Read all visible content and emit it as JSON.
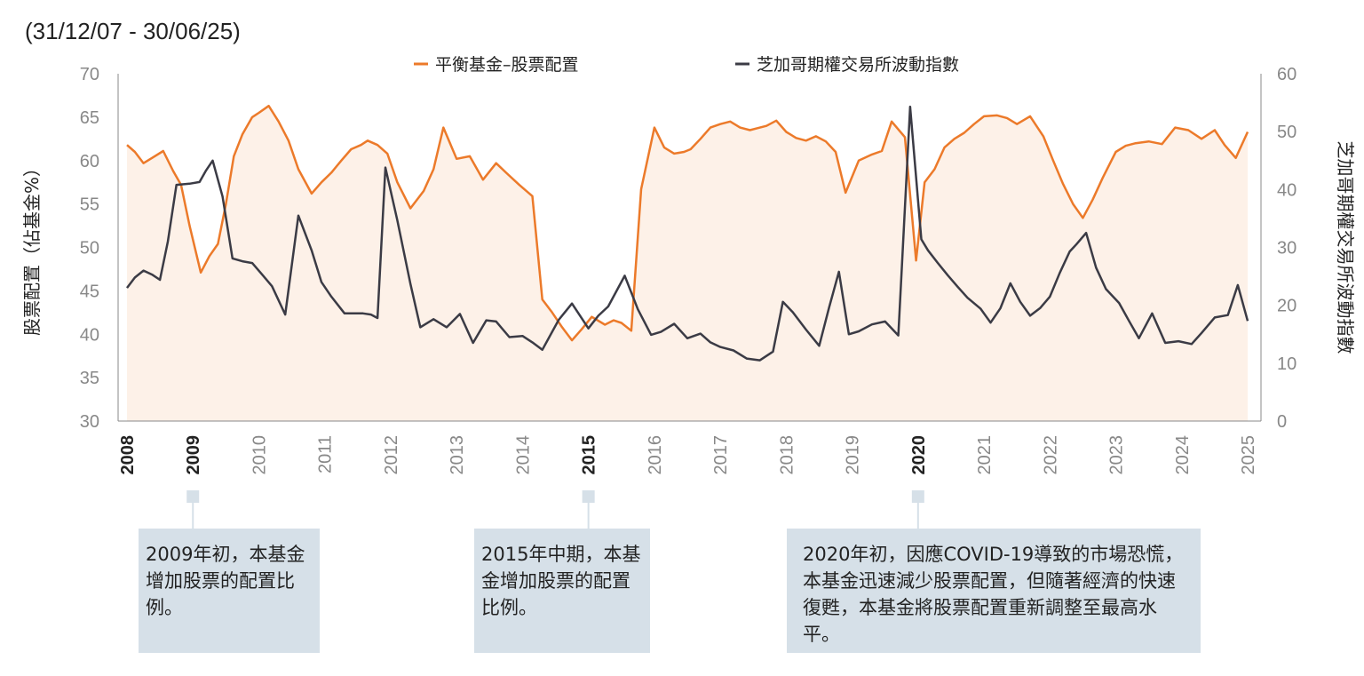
{
  "date_range": "(31/12/07 - 30/06/25)",
  "colors": {
    "equity_line": "#ec7a2a",
    "equity_fill": "#fdf1e8",
    "vix_line": "#3b3b45",
    "axis": "#888888",
    "tick_text": "#888888",
    "note_bg": "#d6e0e8",
    "connector": "#d6e0e8"
  },
  "chart_data": {
    "type": "line",
    "title": "",
    "legend": [
      "平衡基金–股票配置",
      "芝加哥期權交易所波動指數"
    ],
    "ylabel_left": "股票配置（佔基金%）",
    "ylabel_right": "芝加哥期權交易所波動指數",
    "ylim_left": [
      30,
      70
    ],
    "ylim_right": [
      0,
      60
    ],
    "yticks_left": [
      "70",
      "65",
      "60",
      "55",
      "50",
      "45",
      "40",
      "35",
      "30"
    ],
    "yticks_right": [
      "60",
      "50",
      "40",
      "30",
      "20",
      "10",
      "0"
    ],
    "xlim": [
      2008,
      2025
    ],
    "xticks": [
      {
        "label": "2008",
        "bold": true
      },
      {
        "label": "2009",
        "bold": true
      },
      {
        "label": "2010",
        "bold": false
      },
      {
        "label": "2011",
        "bold": false
      },
      {
        "label": "2012",
        "bold": false
      },
      {
        "label": "2013",
        "bold": false
      },
      {
        "label": "2014",
        "bold": false
      },
      {
        "label": "2015",
        "bold": true
      },
      {
        "label": "2016",
        "bold": false
      },
      {
        "label": "2017",
        "bold": false
      },
      {
        "label": "2018",
        "bold": false
      },
      {
        "label": "2019",
        "bold": false
      },
      {
        "label": "2020",
        "bold": true
      },
      {
        "label": "2021",
        "bold": false
      },
      {
        "label": "2022",
        "bold": false
      },
      {
        "label": "2023",
        "bold": false
      },
      {
        "label": "2024",
        "bold": false
      },
      {
        "label": "2025",
        "bold": false
      }
    ],
    "series": [
      {
        "name": "平衡基金–股票配置",
        "axis": "left",
        "x": [
          2008,
          2008.12,
          2008.25,
          2008.38,
          2008.55,
          2008.7,
          2008.82,
          2008.95,
          2009.12,
          2009.25,
          2009.38,
          2009.5,
          2009.62,
          2009.75,
          2009.9,
          2010.0,
          2010.15,
          2010.3,
          2010.45,
          2010.6,
          2010.8,
          2010.95,
          2011.1,
          2011.25,
          2011.4,
          2011.55,
          2011.65,
          2011.8,
          2011.95,
          2012.1,
          2012.3,
          2012.5,
          2012.65,
          2012.8,
          2013.0,
          2013.2,
          2013.4,
          2013.6,
          2013.75,
          2013.95,
          2014.15,
          2014.3,
          2014.45,
          2014.6,
          2014.75,
          2014.9,
          2015.05,
          2015.25,
          2015.38,
          2015.5,
          2015.65,
          2015.8,
          2016.0,
          2016.15,
          2016.3,
          2016.45,
          2016.55,
          2016.7,
          2016.85,
          2017.0,
          2017.15,
          2017.3,
          2017.45,
          2017.55,
          2017.7,
          2017.85,
          2018.0,
          2018.15,
          2018.3,
          2018.45,
          2018.6,
          2018.75,
          2018.9,
          2019.1,
          2019.3,
          2019.45,
          2019.6,
          2019.8,
          2019.97,
          2020.1,
          2020.25,
          2020.4,
          2020.55,
          2020.7,
          2020.85,
          2021.0,
          2021.2,
          2021.35,
          2021.5,
          2021.7,
          2021.9,
          2022.05,
          2022.2,
          2022.35,
          2022.5,
          2022.65,
          2022.8,
          2023.0,
          2023.15,
          2023.3,
          2023.5,
          2023.7,
          2023.9,
          2024.1,
          2024.3,
          2024.5,
          2024.65,
          2024.82,
          2025.0
        ],
        "values": [
          61.8,
          61,
          59.7,
          60.3,
          61.1,
          58.8,
          57.2,
          52.5,
          47.1,
          49,
          50.4,
          55,
          60.5,
          63,
          65,
          65.5,
          66.3,
          64.5,
          62.3,
          59,
          56.2,
          57.5,
          58.6,
          60,
          61.3,
          61.8,
          62.3,
          61.8,
          60.8,
          57.5,
          54.5,
          56.5,
          59,
          63.8,
          60.2,
          60.5,
          57.8,
          59.7,
          58.6,
          57.2,
          55.9,
          44,
          42.5,
          40.8,
          39.3,
          40.6,
          42,
          41.1,
          41.6,
          41.3,
          40.4,
          56.7,
          63.8,
          61.5,
          60.8,
          61,
          61.3,
          62.5,
          63.8,
          64.2,
          64.5,
          63.8,
          63.5,
          63.7,
          64,
          64.6,
          63.3,
          62.6,
          62.3,
          62.8,
          62.2,
          61,
          56.3,
          60,
          60.7,
          61.1,
          64.5,
          62.7,
          48.5,
          57.5,
          59,
          61.5,
          62.5,
          63.2,
          64.2,
          65.1,
          65.2,
          64.9,
          64.2,
          65.1,
          62.8,
          60,
          57.3,
          55,
          53.4,
          55.5,
          58,
          61,
          61.7,
          62,
          62.2,
          61.9,
          63.8,
          63.5,
          62.5,
          63.5,
          61.8,
          60.3,
          63.3
        ]
      },
      {
        "name": "芝加哥期權交易所波動指數",
        "axis": "right",
        "x": [
          2008,
          2008.12,
          2008.25,
          2008.38,
          2008.5,
          2008.62,
          2008.75,
          2008.95,
          2009.1,
          2009.2,
          2009.3,
          2009.45,
          2009.6,
          2009.75,
          2009.9,
          2010.05,
          2010.2,
          2010.4,
          2010.6,
          2010.8,
          2010.95,
          2011.1,
          2011.3,
          2011.45,
          2011.58,
          2011.7,
          2011.8,
          2011.92,
          2012.1,
          2012.3,
          2012.45,
          2012.65,
          2012.85,
          2013.05,
          2013.25,
          2013.45,
          2013.6,
          2013.8,
          2014.0,
          2014.15,
          2014.3,
          2014.55,
          2014.75,
          2015.0,
          2015.15,
          2015.3,
          2015.55,
          2015.75,
          2015.95,
          2016.1,
          2016.3,
          2016.5,
          2016.7,
          2016.85,
          2017.0,
          2017.2,
          2017.4,
          2017.6,
          2017.8,
          2017.95,
          2018.1,
          2018.3,
          2018.5,
          2018.65,
          2018.8,
          2018.95,
          2019.1,
          2019.3,
          2019.5,
          2019.7,
          2019.88,
          2020.05,
          2020.15,
          2020.3,
          2020.45,
          2020.6,
          2020.75,
          2020.95,
          2021.1,
          2021.25,
          2021.4,
          2021.55,
          2021.7,
          2021.85,
          2022.0,
          2022.15,
          2022.3,
          2022.4,
          2022.55,
          2022.7,
          2022.85,
          2023.05,
          2023.2,
          2023.35,
          2023.55,
          2023.75,
          2023.95,
          2024.15,
          2024.3,
          2024.5,
          2024.7,
          2024.85,
          2025.0
        ],
        "values": [
          23,
          24.8,
          26,
          25.3,
          24.4,
          31,
          40.8,
          41,
          41.3,
          43.3,
          45,
          38.8,
          28.1,
          27.6,
          27.3,
          25.3,
          23.3,
          18.4,
          35.5,
          29.5,
          24,
          21.5,
          18.6,
          18.6,
          18.6,
          18.4,
          17.8,
          43.8,
          34.7,
          23.7,
          16.2,
          17.6,
          16.2,
          18.5,
          13.5,
          17.4,
          17.2,
          14.5,
          14.7,
          13.6,
          12.3,
          17.5,
          20.3,
          16,
          18.2,
          19.8,
          25.1,
          19.3,
          14.9,
          15.4,
          16.8,
          14.3,
          15.1,
          13.6,
          12.8,
          12.2,
          10.8,
          10.5,
          12,
          20.6,
          18.8,
          15.8,
          13,
          19.6,
          25.8,
          15,
          15.5,
          16.7,
          17.2,
          14.8,
          54.3,
          31.4,
          29.5,
          27.3,
          25.2,
          23.2,
          21.3,
          19.4,
          17,
          19.5,
          23.8,
          20.6,
          18.2,
          19.5,
          21.5,
          25.6,
          29.3,
          30.5,
          32.5,
          26.5,
          22.8,
          20.4,
          17.3,
          14.3,
          18.6,
          13.5,
          13.8,
          13.3,
          15.2,
          17.9,
          18.3,
          23.5,
          17.3
        ]
      }
    ]
  },
  "notes": [
    {
      "year": "2009",
      "text": "2009年初，本基金增加股票的配置比例。"
    },
    {
      "year": "2015",
      "text": "2015年中期，本基金增加股票的配置比例。"
    },
    {
      "year": "2020",
      "text": "2020年初，因應COVID-19導致的市場恐慌，本基金迅速減少股票配置，但隨著經濟的快速復甦，本基金將股票配置重新調整至最高水平。"
    }
  ]
}
